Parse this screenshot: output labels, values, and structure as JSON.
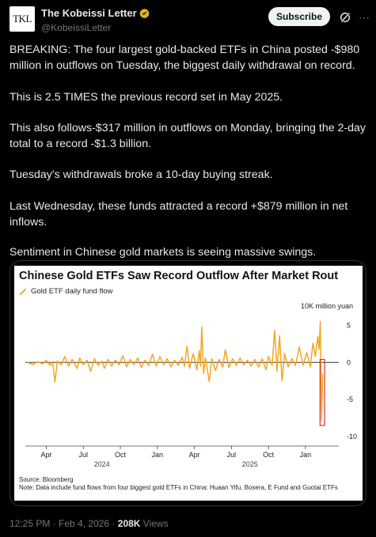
{
  "account": {
    "avatar_text": "TKL",
    "display_name": "The Kobeissi Letter",
    "handle": "@KobeissiLetter"
  },
  "actions": {
    "subscribe_label": "Subscribe"
  },
  "tweet": {
    "paragraphs": [
      "BREAKING: The four largest gold-backed ETFs in China posted -$980 million in outflows on Tuesday, the biggest daily withdrawal on record.",
      "This is 2.5 TIMES the previous record set in May 2025.",
      "This also follows-$317 million in outflows on Monday, bringing the 2-day total to a record -$1.3 billion.",
      "Tuesday's withdrawals broke a 10-day buying streak.",
      "Last Wednesday, these funds attracted a record +$879 million in net inflows.",
      "Sentiment in Chinese gold markets is seeing massive swings."
    ]
  },
  "meta": {
    "time": "12:25 PM",
    "separator": " · ",
    "date": "Feb 4, 2026",
    "views_count": "208K",
    "views_label": " Views"
  },
  "colors": {
    "background": "#000000",
    "text": "#e7e9ea",
    "muted": "#71767b",
    "verified_gold": "#e2b719",
    "series": "#f5a623",
    "highlight_box": "#d0342c"
  },
  "icons": {
    "verified": "verified-badge-icon",
    "grok": "grok-icon",
    "more": "more-icon"
  },
  "chart_data": {
    "type": "line",
    "title": "Chinese Gold ETFs Saw Record Outflow After Market Rout",
    "legend": [
      "Gold ETF daily fund flow"
    ],
    "unit_label": "10K million yuan",
    "y_ticks": [
      5,
      0,
      -5,
      -10
    ],
    "ylim": [
      -10,
      6
    ],
    "x_ticks": [
      {
        "label": "Apr",
        "t": 0.5
      },
      {
        "label": "Jul",
        "t": 3.5
      },
      {
        "label": "Oct",
        "t": 6.5
      },
      {
        "label": "Jan",
        "t": 9.5
      },
      {
        "label": "Apr",
        "t": 12.5
      },
      {
        "label": "Jul",
        "t": 15.5
      },
      {
        "label": "Oct",
        "t": 18.5
      },
      {
        "label": "Jan",
        "t": 21.5
      }
    ],
    "year_labels": [
      {
        "label": "2024",
        "t": 5
      },
      {
        "label": "2025",
        "t": 17
      }
    ],
    "xlim": [
      -1.2,
      24.2
    ],
    "series": [
      {
        "values": [
          [
            -1.0,
            0.0
          ],
          [
            -0.6,
            -0.3
          ],
          [
            -0.2,
            0.1
          ],
          [
            0.2,
            -0.2
          ],
          [
            0.5,
            0.3
          ],
          [
            0.8,
            -0.4
          ],
          [
            1.0,
            0.1
          ],
          [
            1.2,
            -2.6
          ],
          [
            1.4,
            0.2
          ],
          [
            1.7,
            -0.3
          ],
          [
            2.0,
            0.8
          ],
          [
            2.3,
            -0.5
          ],
          [
            2.6,
            0.4
          ],
          [
            3.0,
            -0.8
          ],
          [
            3.2,
            0.6
          ],
          [
            3.5,
            -0.3
          ],
          [
            3.8,
            0.3
          ],
          [
            4.1,
            -1.2
          ],
          [
            4.4,
            0.5
          ],
          [
            4.7,
            -0.4
          ],
          [
            5.0,
            0.2
          ],
          [
            5.2,
            -0.8
          ],
          [
            5.5,
            0.4
          ],
          [
            5.8,
            -0.5
          ],
          [
            6.1,
            0.3
          ],
          [
            6.4,
            -0.3
          ],
          [
            6.7,
            0.9
          ],
          [
            7.0,
            -0.6
          ],
          [
            7.3,
            0.4
          ],
          [
            7.6,
            -0.3
          ],
          [
            7.9,
            0.6
          ],
          [
            8.2,
            -0.7
          ],
          [
            8.5,
            0.3
          ],
          [
            8.8,
            -0.4
          ],
          [
            9.1,
            1.1
          ],
          [
            9.4,
            -0.5
          ],
          [
            9.7,
            0.8
          ],
          [
            10.0,
            -0.3
          ],
          [
            10.3,
            0.5
          ],
          [
            10.6,
            -0.6
          ],
          [
            10.9,
            0.3
          ],
          [
            11.2,
            -0.4
          ],
          [
            11.5,
            0.7
          ],
          [
            11.7,
            -0.5
          ],
          [
            11.9,
            2.2
          ],
          [
            12.1,
            -0.8
          ],
          [
            12.4,
            1.2
          ],
          [
            12.7,
            -1.0
          ],
          [
            12.9,
            1.6
          ],
          [
            13.0,
            -0.5
          ],
          [
            13.1,
            4.8
          ],
          [
            13.25,
            -1.5
          ],
          [
            13.4,
            0.6
          ],
          [
            13.7,
            -2.6
          ],
          [
            13.9,
            0.5
          ],
          [
            14.2,
            -1.1
          ],
          [
            14.5,
            0.4
          ],
          [
            14.8,
            -0.6
          ],
          [
            15.0,
            1.7
          ],
          [
            15.3,
            -0.7
          ],
          [
            15.6,
            0.5
          ],
          [
            15.9,
            -0.4
          ],
          [
            16.2,
            0.6
          ],
          [
            16.5,
            -0.3
          ],
          [
            16.8,
            0.3
          ],
          [
            17.1,
            -0.5
          ],
          [
            17.4,
            0.4
          ],
          [
            17.7,
            -0.6
          ],
          [
            18.0,
            0.5
          ],
          [
            18.3,
            -1.0
          ],
          [
            18.5,
            0.8
          ],
          [
            18.8,
            -0.4
          ],
          [
            19.0,
            4.3
          ],
          [
            19.2,
            -1.2
          ],
          [
            19.4,
            3.6
          ],
          [
            19.6,
            -2.5
          ],
          [
            19.8,
            1.2
          ],
          [
            20.1,
            -0.6
          ],
          [
            20.4,
            0.5
          ],
          [
            20.7,
            -0.4
          ],
          [
            21.0,
            2.1
          ],
          [
            21.3,
            -0.4
          ],
          [
            21.6,
            1.3
          ],
          [
            21.9,
            -0.6
          ],
          [
            22.1,
            2.6
          ],
          [
            22.3,
            0.8
          ],
          [
            22.5,
            3.5
          ],
          [
            22.6,
            1.8
          ],
          [
            22.7,
            5.5
          ],
          [
            22.8,
            -7.8
          ],
          [
            22.9,
            -1.5
          ]
        ]
      }
    ],
    "grid": "none",
    "highlight": {
      "t_min": 22.68,
      "t_max": 23.05,
      "y_min": -8.5,
      "y_max": 0.4
    }
  },
  "chart_notes": {
    "source": "Source: Bloomberg",
    "note": "Note: Data include fund flows from four biggest gold ETFs in China: Huaan Yifu, Bosera, E Fund and Guotai ETFs"
  }
}
